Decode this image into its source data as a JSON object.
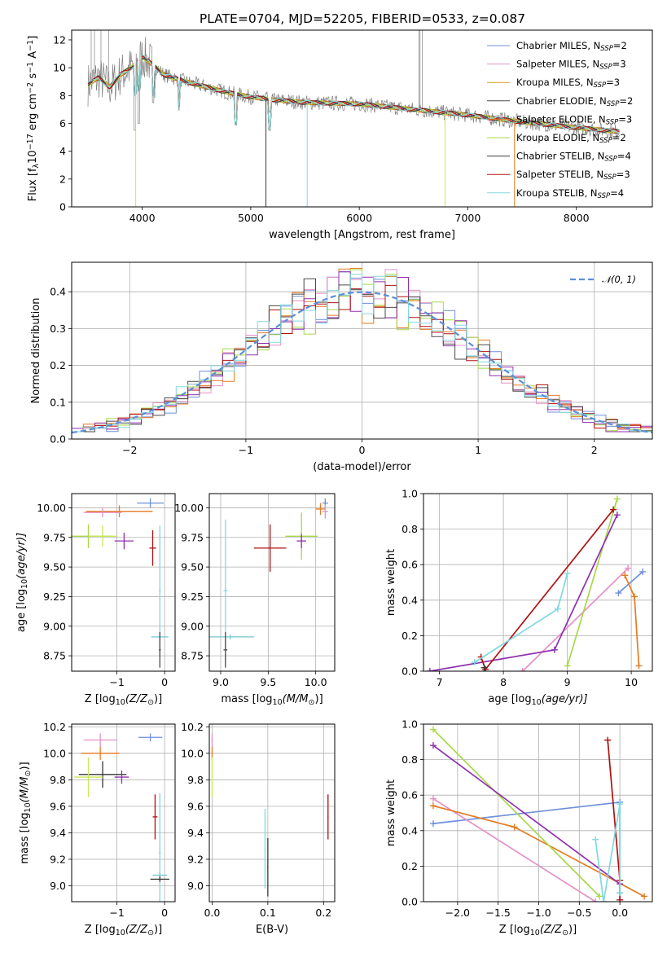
{
  "figure_title": "PLATE=0704, MJD=52205, FIBERID=0533, z=0.087",
  "colors": {
    "chabrier_miles": "#6f8fdc",
    "salpeter_miles": "#e590c6",
    "kroupa_miles": "#d4a020",
    "chabrier_elodie": "#4a4a4a",
    "salpeter_elodie": "#e57a20",
    "kroupa_elodie": "#a8d848",
    "chabrier_stelib": "#383838",
    "salpeter_stelib": "#b01010",
    "kroupa_stelib": "#80d8e0",
    "purple": "#9030b0",
    "yellowgreen": "#c8e858",
    "teal": "#70c8d0",
    "data_gray": "#808080"
  },
  "chart_data": [
    {
      "id": "spectrum",
      "type": "line",
      "title": "PLATE=0704, MJD=52205, FIBERID=0533, z=0.087",
      "xlabel": "wavelength [Angstrom, rest frame]",
      "ylabel": "Flux [f",
      "ylabel_parts": [
        "Flux [f",
        "λ",
        "10",
        "−17",
        " erg cm",
        "−2",
        " s",
        "−1",
        " A",
        "−1",
        "]"
      ],
      "xlim": [
        3350,
        8700
      ],
      "ylim": [
        0,
        12.7
      ],
      "xticks": [
        4000,
        5000,
        6000,
        7000,
        8000
      ],
      "yticks": [
        0,
        2,
        4,
        6,
        8,
        10,
        12
      ],
      "legend_position": "upper right",
      "legend": [
        {
          "pre": "Chabrier MILES, N",
          "sub": "SSP",
          "post": "=2",
          "color": "#6f8fdc"
        },
        {
          "pre": "Salpeter MILES, N",
          "sub": "SSP",
          "post": "=3",
          "color": "#e590c6"
        },
        {
          "pre": "Kroupa MILES, N",
          "sub": "SSP",
          "post": "=3",
          "color": "#d4a020"
        },
        {
          "pre": "Chabrier ELODIE, N",
          "sub": "SSP",
          "post": "=2",
          "color": "#4a4a4a"
        },
        {
          "pre": "Salpeter ELODIE, N",
          "sub": "SSP",
          "post": "=3",
          "color": "#e57a20"
        },
        {
          "pre": "Kroupa ELODIE, N",
          "sub": "SSP",
          "post": "=2",
          "color": "#a8d848"
        },
        {
          "pre": "Chabrier STELIB, N",
          "sub": "SSP",
          "post": "=4",
          "color": "#383838"
        },
        {
          "pre": "Salpeter STELIB, N",
          "sub": "SSP",
          "post": "=3",
          "color": "#b01010"
        },
        {
          "pre": "Kroupa STELIB, N",
          "sub": "SSP",
          "post": "=4",
          "color": "#80d8e0"
        }
      ],
      "continuum": {
        "x": [
          3500,
          3600,
          3700,
          3800,
          3900,
          4000,
          4100,
          4200,
          4400,
          4600,
          4800,
          5000,
          5200,
          5500,
          6000,
          6500,
          7000,
          7500,
          8000,
          8400
        ],
        "y": [
          8.8,
          9.3,
          8.6,
          9.5,
          10.0,
          10.8,
          10.2,
          9.5,
          9.0,
          8.6,
          8.2,
          7.9,
          7.7,
          7.5,
          7.4,
          7.0,
          6.6,
          6.1,
          5.7,
          5.4
        ]
      },
      "absorption_features": [
        {
          "x": 3934,
          "y": 5.5
        },
        {
          "x": 3969,
          "y": 6.0
        },
        {
          "x": 4102,
          "y": 7.5
        },
        {
          "x": 4340,
          "y": 7.2
        },
        {
          "x": 4861,
          "y": 6.5
        },
        {
          "x": 5175,
          "y": 6.8
        }
      ],
      "data_spikes": [
        {
          "x": 3530,
          "y": 12.7
        },
        {
          "x": 3560,
          "y": 12.7
        },
        {
          "x": 3620,
          "y": 12.7
        },
        {
          "x": 3690,
          "y": 12.7
        },
        {
          "x": 6550,
          "y": 12.7
        },
        {
          "x": 6560,
          "y": 12.7
        },
        {
          "x": 6580,
          "y": 12.7
        }
      ]
    },
    {
      "id": "residuals",
      "type": "histogram",
      "xlabel": "(data-model)/error",
      "ylabel": "Normed distribution",
      "xlim": [
        -2.5,
        2.5
      ],
      "ylim": [
        0,
        0.48
      ],
      "xticks": [
        -2,
        -1,
        0,
        1,
        2
      ],
      "yticks": [
        0.0,
        0.1,
        0.2,
        0.3,
        0.4
      ],
      "bin_width": 0.1,
      "legend": [
        {
          "label": "𝒩(0, 1)",
          "color": "#5b8fd8",
          "dashed": true
        }
      ],
      "series_colors": [
        "#6f8fdc",
        "#e590c6",
        "#e57a20",
        "#a8d848",
        "#9030b0",
        "#b01010",
        "#4a4a4a",
        "#80d8e0"
      ]
    },
    {
      "id": "age_vs_z",
      "type": "errorbar",
      "xlabel": "Z [log",
      "xlabel_parts": [
        "Z [log",
        "10",
        "(Z/Z",
        "⊙",
        ")]"
      ],
      "ylabel_parts": [
        "age  [log",
        "10",
        "(age/yr)]"
      ],
      "xlim": [
        -1.95,
        0.22
      ],
      "ylim": [
        8.62,
        10.12
      ],
      "xticks": [
        -1,
        0
      ],
      "yticks": [
        8.75,
        9.0,
        9.25,
        9.5,
        9.75,
        10.0
      ],
      "points": [
        {
          "x": -0.3,
          "y": 10.04,
          "xerr": 0.28,
          "yerr": 0.04,
          "color": "#6f8fdc"
        },
        {
          "x": -0.95,
          "y": 9.97,
          "xerr": 0.7,
          "yerr": 0.05,
          "color": "#e57a20"
        },
        {
          "x": -1.3,
          "y": 9.96,
          "xerr": 0.4,
          "yerr": 0.04,
          "color": "#e590c6"
        },
        {
          "x": -1.6,
          "y": 9.76,
          "xerr": 0.5,
          "yerr": 0.1,
          "color": "#a8d848"
        },
        {
          "x": -1.3,
          "y": 9.76,
          "xerr": 0.3,
          "yerr": 0.09,
          "color": "#c8e858"
        },
        {
          "x": -0.85,
          "y": 9.72,
          "xerr": 0.2,
          "yerr": 0.07,
          "color": "#9030b0"
        },
        {
          "x": -0.25,
          "y": 9.66,
          "xerr": 0.07,
          "yerr": 0.15,
          "color": "#b01010"
        },
        {
          "x": -0.1,
          "y": 9.3,
          "xerr": 0.02,
          "yerr": 0.55,
          "color": "#80d8e0"
        },
        {
          "x": -0.1,
          "y": 8.91,
          "xerr": 0.18,
          "yerr": 0.03,
          "color": "#70c8d0"
        },
        {
          "x": -0.1,
          "y": 8.8,
          "xerr": 0.02,
          "yerr": 0.15,
          "color": "#4a4a4a"
        }
      ]
    },
    {
      "id": "age_vs_mass",
      "type": "errorbar",
      "xlabel_parts": [
        "mass [log",
        "10",
        "(M/M",
        "⊙",
        ")]"
      ],
      "xlim": [
        8.88,
        10.2
      ],
      "ylim": [
        8.62,
        10.12
      ],
      "xticks": [
        9.0,
        9.5,
        10.0
      ],
      "yticks": [
        8.75,
        9.0,
        9.25,
        9.5,
        9.75,
        10.0
      ],
      "points": [
        {
          "x": 10.1,
          "y": 10.04,
          "xerr": 0.03,
          "yerr": 0.04,
          "color": "#6f8fdc"
        },
        {
          "x": 10.05,
          "y": 9.99,
          "xerr": 0.05,
          "yerr": 0.05,
          "color": "#e57a20"
        },
        {
          "x": 10.1,
          "y": 9.97,
          "xerr": 0.03,
          "yerr": 0.06,
          "color": "#e590c6"
        },
        {
          "x": 9.85,
          "y": 9.76,
          "xerr": 0.17,
          "yerr": 0.2,
          "color": "#a8d848"
        },
        {
          "x": 9.85,
          "y": 9.72,
          "xerr": 0.05,
          "yerr": 0.06,
          "color": "#9030b0"
        },
        {
          "x": 9.52,
          "y": 9.66,
          "xerr": 0.17,
          "yerr": 0.2,
          "color": "#b01010"
        },
        {
          "x": 9.05,
          "y": 9.3,
          "xerr": 0.02,
          "yerr": 0.6,
          "color": "#80d8e0"
        },
        {
          "x": 9.1,
          "y": 8.91,
          "xerr": 0.25,
          "yerr": 0.02,
          "color": "#70c8d0"
        },
        {
          "x": 9.05,
          "y": 8.8,
          "xerr": 0.02,
          "yerr": 0.15,
          "color": "#4a4a4a"
        }
      ]
    },
    {
      "id": "weight_vs_age",
      "type": "line",
      "xlabel_parts": [
        "age  [log",
        "10",
        "(age/yr)]"
      ],
      "ylabel": "mass weight",
      "xlim": [
        6.75,
        10.33
      ],
      "ylim": [
        0,
        1.0
      ],
      "xticks": [
        7,
        8,
        9,
        10
      ],
      "yticks": [
        0.0,
        0.2,
        0.4,
        0.6,
        0.8,
        1.0
      ],
      "series": [
        {
          "color": "#6f8fdc",
          "x": [
            9.8,
            10.18
          ],
          "y": [
            0.44,
            0.56
          ]
        },
        {
          "color": "#e590c6",
          "x": [
            8.3,
            9.95
          ],
          "y": [
            0.0,
            0.58
          ]
        },
        {
          "color": "#e57a20",
          "x": [
            9.9,
            10.05,
            10.12
          ],
          "y": [
            0.54,
            0.42,
            0.03
          ]
        },
        {
          "color": "#a8d848",
          "x": [
            9.0,
            9.78
          ],
          "y": [
            0.03,
            0.97
          ]
        },
        {
          "color": "#9030b0",
          "x": [
            6.85,
            8.8,
            9.78
          ],
          "y": [
            0.0,
            0.12,
            0.88
          ]
        },
        {
          "color": "#b01010",
          "x": [
            7.65,
            7.72,
            9.72
          ],
          "y": [
            0.08,
            0.01,
            0.91
          ]
        },
        {
          "color": "#80d8e0",
          "x": [
            7.55,
            8.85,
            9.0
          ],
          "y": [
            0.05,
            0.35,
            0.55
          ]
        },
        {
          "color": "#383838",
          "x": [
            7.7
          ],
          "y": [
            0.02
          ]
        }
      ]
    },
    {
      "id": "mass_vs_z",
      "type": "errorbar",
      "xlabel_parts": [
        "Z [log",
        "10",
        "(Z/Z",
        "⊙",
        ")]"
      ],
      "ylabel_parts": [
        "mass [log",
        "10",
        "(M/M",
        "⊙",
        ")]"
      ],
      "xlim": [
        -1.95,
        0.22
      ],
      "ylim": [
        8.88,
        10.22
      ],
      "xticks": [
        -1,
        0
      ],
      "yticks": [
        9.0,
        9.2,
        9.4,
        9.6,
        9.8,
        10.0,
        10.2
      ],
      "points": [
        {
          "x": -0.3,
          "y": 10.12,
          "xerr": 0.25,
          "yerr": 0.03,
          "color": "#6f8fdc"
        },
        {
          "x": -1.35,
          "y": 10.1,
          "xerr": 0.35,
          "yerr": 0.05,
          "color": "#e590c6"
        },
        {
          "x": -1.35,
          "y": 10.0,
          "xerr": 0.4,
          "yerr": 0.05,
          "color": "#e57a20"
        },
        {
          "x": -1.3,
          "y": 9.84,
          "xerr": 0.5,
          "yerr": 0.1,
          "color": "#383838"
        },
        {
          "x": -1.6,
          "y": 9.82,
          "xerr": 0.3,
          "yerr": 0.15,
          "color": "#c8e858"
        },
        {
          "x": -0.9,
          "y": 9.82,
          "xerr": 0.15,
          "yerr": 0.05,
          "color": "#9030b0"
        },
        {
          "x": -0.2,
          "y": 9.52,
          "xerr": 0.05,
          "yerr": 0.17,
          "color": "#b01010"
        },
        {
          "x": -0.1,
          "y": 9.25,
          "xerr": 0.02,
          "yerr": 0.45,
          "color": "#80d8e0"
        },
        {
          "x": -0.1,
          "y": 9.08,
          "xerr": 0.15,
          "yerr": 0.02,
          "color": "#70c8d0"
        },
        {
          "x": -0.1,
          "y": 9.05,
          "xerr": 0.2,
          "yerr": 0.02,
          "color": "#383838"
        }
      ]
    },
    {
      "id": "mass_vs_ebv",
      "type": "errorbar",
      "xlabel": "E(B-V)",
      "xlim": [
        -0.005,
        0.22
      ],
      "ylim": [
        8.88,
        10.22
      ],
      "xticks": [
        0.0,
        0.1,
        0.2
      ],
      "yticks": [
        9.0,
        9.2,
        9.4,
        9.6,
        9.8,
        10.0,
        10.2
      ],
      "points": [
        {
          "x": 0.0,
          "y": 10.1,
          "xerr": 0.001,
          "yerr": 0.05,
          "color": "#e590c6"
        },
        {
          "x": 0.0,
          "y": 10.0,
          "xerr": 0.001,
          "yerr": 0.05,
          "color": "#e57a20"
        },
        {
          "x": 0.0,
          "y": 9.82,
          "xerr": 0.001,
          "yerr": 0.15,
          "color": "#c8e858"
        },
        {
          "x": 0.095,
          "y": 9.28,
          "xerr": 0.001,
          "yerr": 0.3,
          "color": "#80d8e0"
        },
        {
          "x": 0.1,
          "y": 9.14,
          "xerr": 0.001,
          "yerr": 0.22,
          "color": "#383838"
        },
        {
          "x": 0.208,
          "y": 9.52,
          "xerr": 0.001,
          "yerr": 0.17,
          "color": "#b01010"
        }
      ]
    },
    {
      "id": "weight_vs_z",
      "type": "line",
      "xlabel_parts": [
        "Z [log",
        "10",
        "(Z/Z",
        "⊙",
        ")]"
      ],
      "ylabel": "mass weight",
      "xlim": [
        -2.42,
        0.4
      ],
      "ylim": [
        0,
        1.0
      ],
      "xticks": [
        -2.0,
        -1.5,
        -1.0,
        -0.5,
        0.0
      ],
      "yticks": [
        0.0,
        0.2,
        0.4,
        0.6,
        0.8,
        1.0
      ],
      "series": [
        {
          "color": "#6f8fdc",
          "x": [
            -2.3,
            0.0,
            0.0
          ],
          "y": [
            0.44,
            0.56,
            0.05
          ]
        },
        {
          "color": "#e590c6",
          "x": [
            -2.3,
            -0.3
          ],
          "y": [
            0.58,
            0.0
          ]
        },
        {
          "color": "#e57a20",
          "x": [
            -2.3,
            -1.3,
            0.3
          ],
          "y": [
            0.54,
            0.42,
            0.03
          ]
        },
        {
          "color": "#a8d848",
          "x": [
            -2.3,
            -0.25
          ],
          "y": [
            0.97,
            0.03
          ]
        },
        {
          "color": "#9030b0",
          "x": [
            -2.3,
            0.0
          ],
          "y": [
            0.88,
            0.1
          ]
        },
        {
          "color": "#b01010",
          "x": [
            -0.15,
            0.0,
            0.0
          ],
          "y": [
            0.91,
            0.12,
            0.01
          ]
        },
        {
          "color": "#80d8e0",
          "x": [
            -0.3,
            -0.2,
            0.0,
            0.0
          ],
          "y": [
            0.35,
            0.0,
            0.55,
            0.05
          ]
        }
      ]
    }
  ]
}
